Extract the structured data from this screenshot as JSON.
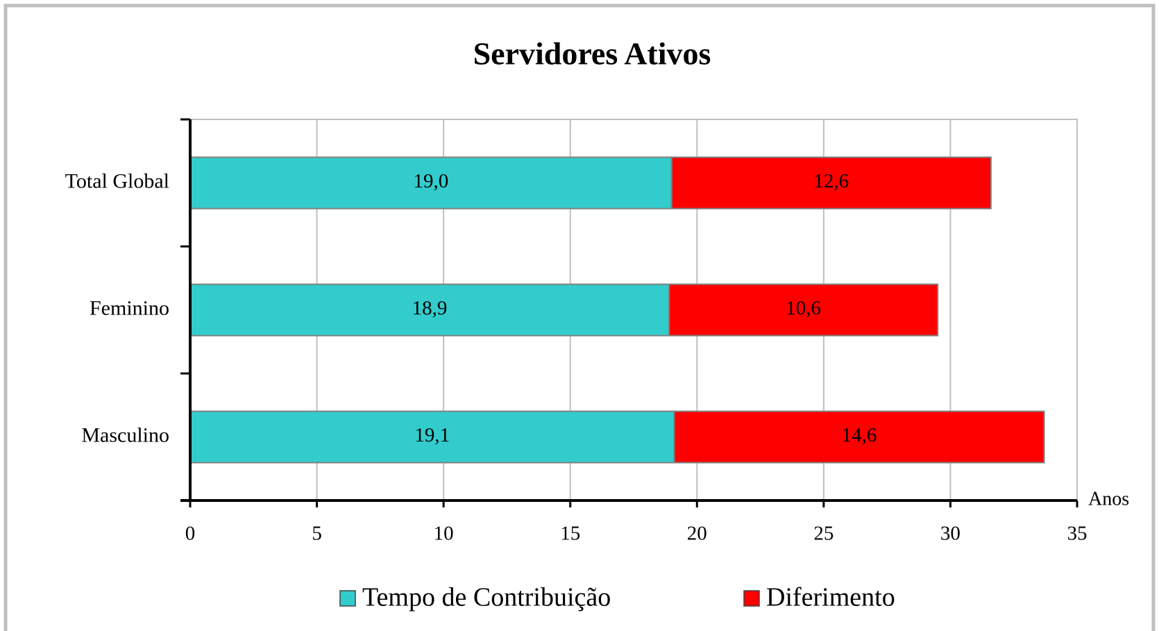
{
  "chart_data": {
    "type": "stacked-bar-horizontal",
    "title": "Servidores Ativos",
    "categories": [
      "Total Global",
      "Feminino",
      "Masculino"
    ],
    "series": [
      {
        "name": "Tempo de Contribuição",
        "color": "#33cccc",
        "values": [
          19.0,
          18.9,
          19.1
        ],
        "value_labels": [
          "19,0",
          "18,9",
          "19,1"
        ]
      },
      {
        "name": "Diferimento",
        "color": "#ff0000",
        "values": [
          12.6,
          10.6,
          14.6
        ],
        "value_labels": [
          "12,6",
          "10,6",
          "14,6"
        ]
      }
    ],
    "x_label": "Anos",
    "xlim": [
      0,
      35
    ],
    "xticks": [
      0,
      5,
      10,
      15,
      20,
      25,
      30,
      35
    ],
    "grid": true,
    "legend": "bottom"
  }
}
